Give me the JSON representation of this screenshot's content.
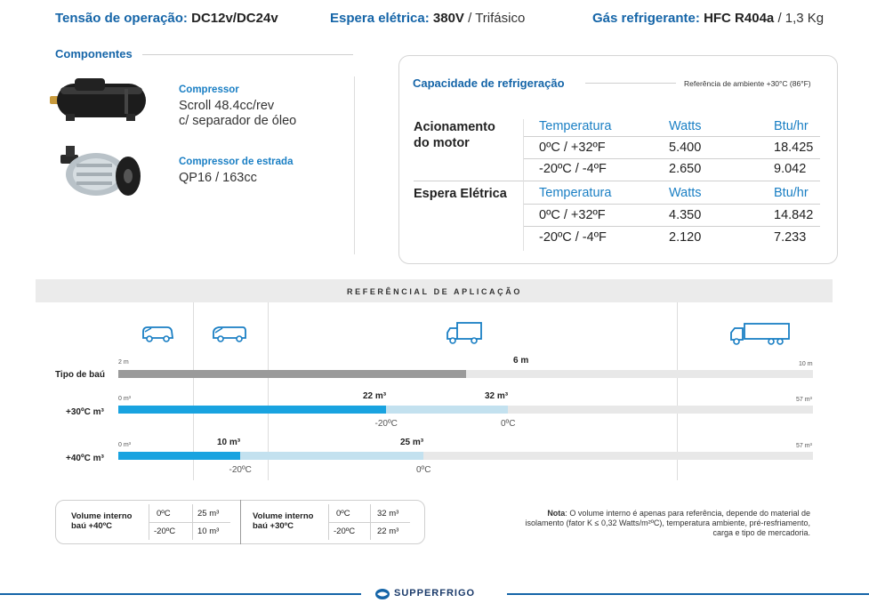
{
  "specs": {
    "voltage_label": "Tensão de operação:",
    "voltage_value": "DC12v/DC24v",
    "standby_label": "Espera elétrica:",
    "standby_value": "380V",
    "standby_rest": "/ Trifásico",
    "gas_label": "Gás refrigerante:",
    "gas_value": "HFC R404a",
    "gas_rest": "/ 1,3 Kg"
  },
  "components": {
    "title": "Componentes",
    "items": [
      {
        "name": "Compressor",
        "line1": "Scroll 48.4cc/rev",
        "line2": "c/ separador de óleo",
        "image": "scroll-compressor-image"
      },
      {
        "name": "Compressor de estrada",
        "line1": "QP16 / 163cc",
        "line2": "",
        "image": "road-compressor-image"
      }
    ]
  },
  "capacity": {
    "title": "Capacidade de refrigeração",
    "reference": "Referência de ambiente +30°C (86°F)",
    "headers": [
      "Temperatura",
      "Watts",
      "Btu/hr"
    ],
    "groups": [
      {
        "label_line1": "Acionamento",
        "label_line2": "do motor",
        "rows": [
          [
            "0ºC / +32ºF",
            "5.400",
            "18.425"
          ],
          [
            "-20ºC / -4ºF",
            "2.650",
            "9.042"
          ]
        ]
      },
      {
        "label_line1": "Espera Elétrica",
        "label_line2": "",
        "rows": [
          [
            "0ºC / +32ºF",
            "4.350",
            "14.842"
          ],
          [
            "-20ºC / -4ºF",
            "2.120",
            "7.233"
          ]
        ]
      }
    ]
  },
  "referential": {
    "title": "REFERÊNCIAL DE APLICAÇÃO",
    "icons": [
      "van-icon",
      "van-icon",
      "box-truck-icon",
      "semi-truck-icon"
    ],
    "rows": {
      "body_type": {
        "label": "Tipo de baú",
        "min": "2 m",
        "mark": "6 m",
        "max": "10 m",
        "fill_fraction": 0.5
      },
      "plus30": {
        "label": "+30ºC m³",
        "min": "0 m³",
        "mark1": "22 m³",
        "mark2": "32 m³",
        "max": "57 m³",
        "temp1": "-20ºC",
        "temp2": "0ºC",
        "value_minus20": 22,
        "value_0": 32,
        "scale_max": 57
      },
      "plus40": {
        "label": "+40ºC m³",
        "min": "0 m³",
        "mark1": "10 m³",
        "mark2": "25 m³",
        "max": "57 m³",
        "temp1": "-20ºC",
        "temp2": "0ºC",
        "value_minus20": 10,
        "value_0": 25,
        "scale_max": 57
      }
    }
  },
  "volume_table": {
    "left": {
      "label_line1": "Volume interno",
      "label_line2": "baú +40ºC",
      "rows": [
        [
          "0ºC",
          "25 m³"
        ],
        [
          "-20ºC",
          "10 m³"
        ]
      ]
    },
    "right": {
      "label_line1": "Volume interno",
      "label_line2": "baú +30ºC",
      "rows": [
        [
          "0ºC",
          "32 m³"
        ],
        [
          "-20ºC",
          "22 m³"
        ]
      ]
    }
  },
  "note": {
    "label": "Nota",
    "text": ": O volume interno é apenas para referência, depende do material de isolamento (fator K ≤ 0,32 Watts/m²ºC), temperatura ambiente, pré-resfriamento, carga e tipo de mercadoria."
  },
  "footer": {
    "brand": "SUPPERFRIGO",
    "logo": "supperfrigo-logo-icon"
  },
  "colors": {
    "brand_blue": "#1565a8",
    "accent_blue": "#19a3e0",
    "light_blue": "#c3e1ef",
    "gray_fill": "#9a9a9a",
    "track": "#e8e8e8"
  }
}
